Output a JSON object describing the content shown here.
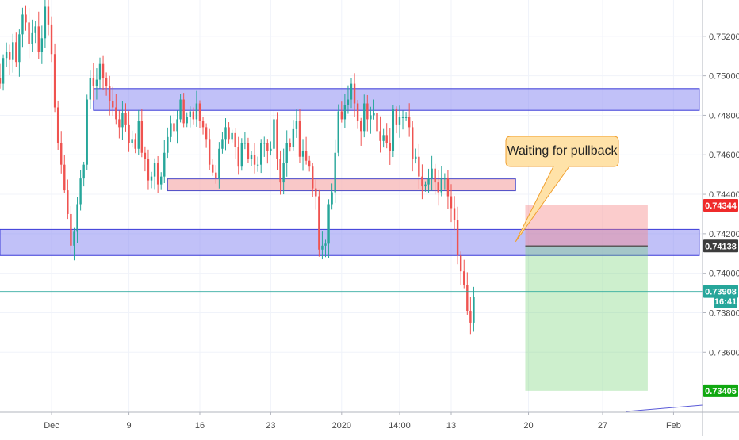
{
  "chart_data": {
    "type": "candlestick",
    "ylim": [
      0.73296,
      0.75384
    ],
    "y_ticks": [
      "0.75200",
      "0.75000",
      "0.74800",
      "0.74600",
      "0.74400",
      "0.74200",
      "0.74000",
      "0.73800",
      "0.73600"
    ],
    "y_tick_values": [
      0.752,
      0.75,
      0.748,
      0.746,
      0.744,
      0.742,
      0.74,
      0.738,
      0.736
    ],
    "x_ticks": [
      "Dec",
      "9",
      "16",
      "23",
      "2020",
      "14:00",
      "13",
      "20",
      "27",
      "Feb"
    ],
    "x_tick_index": [
      16,
      40,
      62,
      84,
      106,
      124,
      140,
      164,
      187,
      209
    ],
    "x_index_range": [
      0,
      218
    ],
    "grid": true,
    "price_tags": [
      {
        "label": "0.74344",
        "value": 0.74344,
        "color": "#ef2b2b",
        "text_color": "#ffffff"
      },
      {
        "label": "0.74138",
        "value": 0.74138,
        "color": "#3c3c3c",
        "text_color": "#ffffff"
      },
      {
        "label": "0.73908",
        "value": 0.73908,
        "color": "#26a69a",
        "text_color": "#ffffff"
      },
      {
        "label": "16:41",
        "value": 0.73858,
        "color": "#26a69a",
        "text_color": "#ffffff"
      },
      {
        "label": "0.73405",
        "value": 0.73405,
        "color": "#10a810",
        "text_color": "#ffffff"
      }
    ],
    "current_price": 0.73908,
    "zones": [
      {
        "name": "resistance",
        "x0": 29,
        "x1": 217,
        "y_low": 0.74825,
        "y_high": 0.74935,
        "color": "#8e8ef2"
      },
      {
        "name": "mid",
        "x0": 52,
        "x1": 160,
        "y_low": 0.74418,
        "y_high": 0.74478,
        "color": "#f7b6b6"
      },
      {
        "name": "support",
        "x0": 0,
        "x1": 217,
        "y_low": 0.7409,
        "y_high": 0.74222,
        "color": "#8e8ef2"
      }
    ],
    "short_position": {
      "x0": 163,
      "x1": 201,
      "entry": 0.74138,
      "stop": 0.74344,
      "target": 0.73405
    },
    "callout": {
      "text": "Waiting for pullback",
      "pointer_to_index": 160,
      "pointer_to_value": 0.7416
    },
    "candles_close": [
      0.7496,
      0.7509,
      0.7512,
      0.7508,
      0.7517,
      0.7507,
      0.7521,
      0.7531,
      0.7527,
      0.7516,
      0.7522,
      0.7525,
      0.7512,
      0.7519,
      0.7535,
      0.7526,
      0.7511,
      0.7484,
      0.7466,
      0.7455,
      0.7442,
      0.743,
      0.7414,
      0.7421,
      0.7435,
      0.7448,
      0.7455,
      0.7488,
      0.7499,
      0.7495,
      0.7498,
      0.7506,
      0.7499,
      0.7495,
      0.7487,
      0.7484,
      0.7478,
      0.7474,
      0.7481,
      0.7475,
      0.7466,
      0.7468,
      0.7463,
      0.7477,
      0.7461,
      0.7458,
      0.7447,
      0.7449,
      0.7456,
      0.7445,
      0.7449,
      0.7461,
      0.7469,
      0.7476,
      0.7472,
      0.7478,
      0.7488,
      0.7476,
      0.7479,
      0.7482,
      0.7478,
      0.7486,
      0.7477,
      0.7474,
      0.7468,
      0.7455,
      0.7451,
      0.7448,
      0.7463,
      0.7468,
      0.7474,
      0.7468,
      0.7471,
      0.7464,
      0.7454,
      0.7466,
      0.7466,
      0.7458,
      0.746,
      0.7455,
      0.7455,
      0.7466,
      0.7466,
      0.7462,
      0.7463,
      0.7478,
      0.7458,
      0.7446,
      0.7456,
      0.7466,
      0.7464,
      0.7473,
      0.7477,
      0.7459,
      0.7462,
      0.7457,
      0.7454,
      0.7443,
      0.7439,
      0.7412,
      0.7414,
      0.7415,
      0.7435,
      0.7441,
      0.7461,
      0.7482,
      0.7478,
      0.7485,
      0.7488,
      0.7496,
      0.7486,
      0.7477,
      0.7472,
      0.7486,
      0.7478,
      0.748,
      0.7481,
      0.7472,
      0.7467,
      0.747,
      0.7466,
      0.7462,
      0.7483,
      0.7475,
      0.7479,
      0.7479,
      0.7479,
      0.7474,
      0.7458,
      0.7459,
      0.7449,
      0.7444,
      0.7445,
      0.7448,
      0.7453,
      0.7446,
      0.7441,
      0.7448,
      0.7448,
      0.7439,
      0.7433,
      0.7427,
      0.7409,
      0.7401,
      0.7394,
      0.7381,
      0.7375,
      0.7388
    ]
  }
}
